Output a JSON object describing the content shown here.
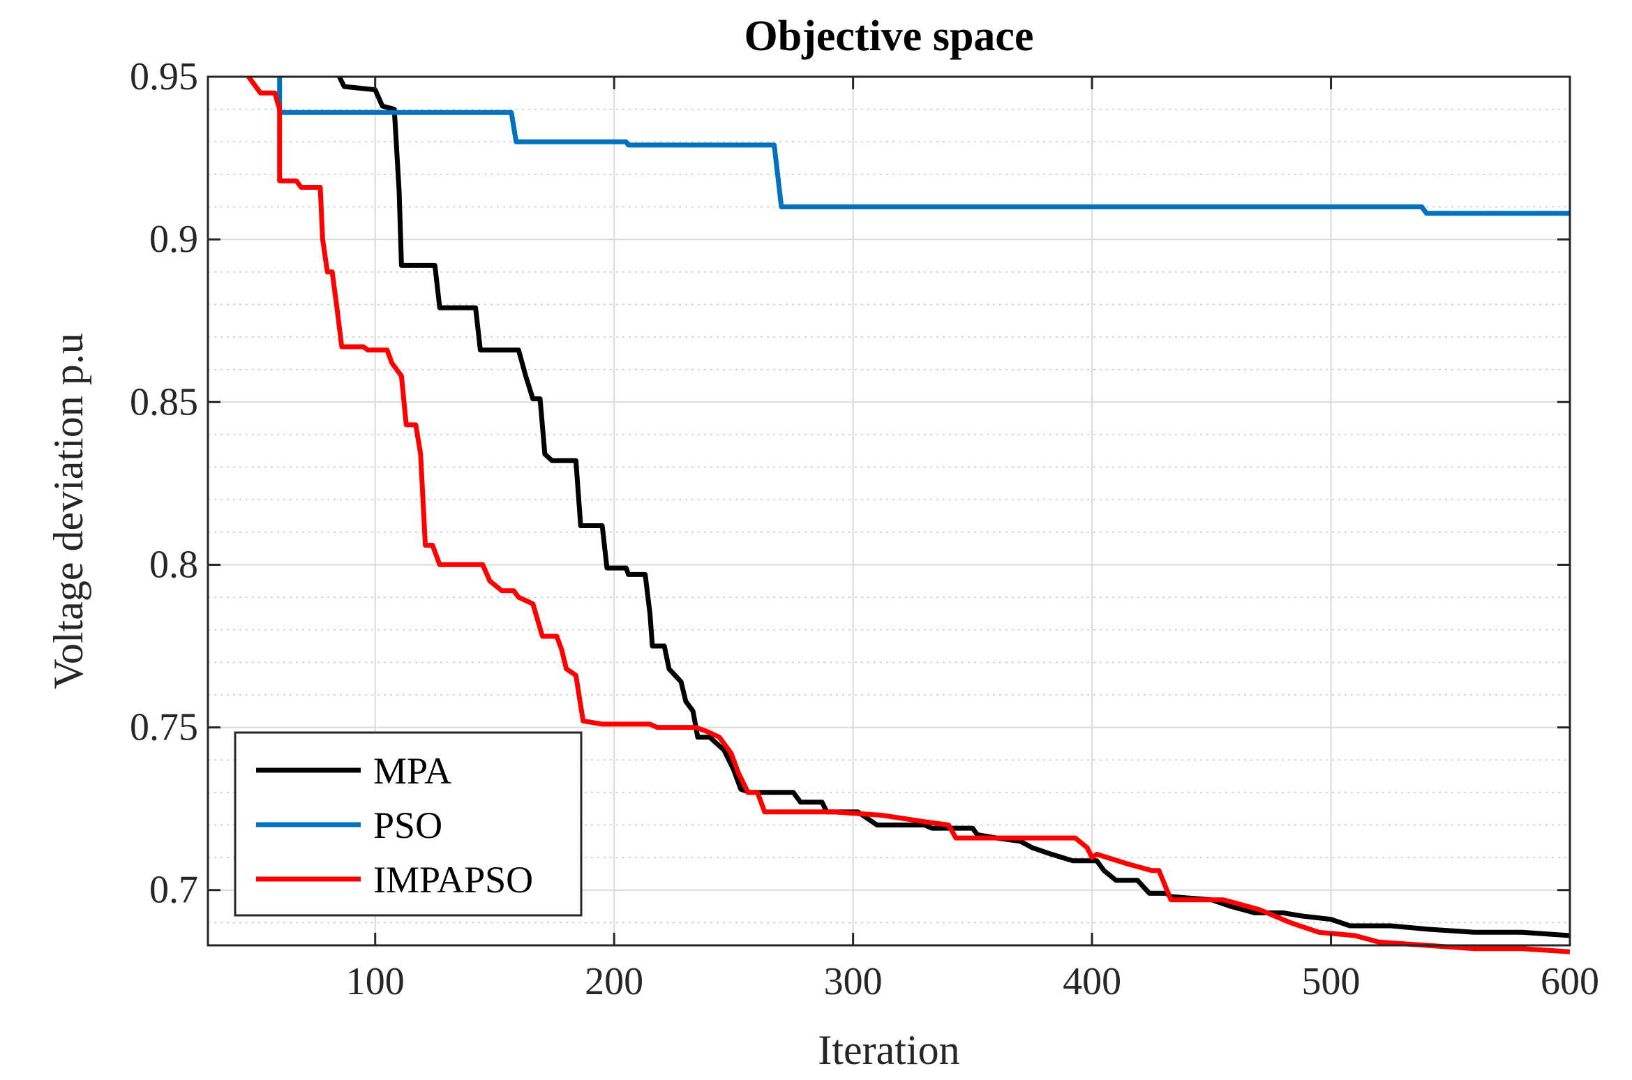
{
  "chart_data": {
    "type": "line",
    "title": "Objective space",
    "xlabel": "Iteration",
    "ylabel": "Voltage deviation p.u",
    "xlim": [
      30,
      600
    ],
    "ylim": [
      0.683,
      0.95
    ],
    "xticks": [
      100,
      200,
      300,
      400,
      500,
      600
    ],
    "xtick_labels": [
      "100",
      "200",
      "300",
      "400",
      "500",
      "600"
    ],
    "yticks": [
      0.7,
      0.75,
      0.8,
      0.85,
      0.9,
      0.95
    ],
    "ytick_labels": [
      "0.7",
      "0.75",
      "0.8",
      "0.85",
      "0.9",
      "0.95"
    ],
    "grid": true,
    "legend_position": "bottom-left",
    "series": [
      {
        "name": "MPA",
        "color": "#000000",
        "points": [
          [
            85,
            0.95
          ],
          [
            87,
            0.947
          ],
          [
            100,
            0.946
          ],
          [
            103,
            0.941
          ],
          [
            108,
            0.94
          ],
          [
            110,
            0.915
          ],
          [
            111,
            0.892
          ],
          [
            125,
            0.892
          ],
          [
            127,
            0.879
          ],
          [
            142,
            0.879
          ],
          [
            144,
            0.866
          ],
          [
            160,
            0.866
          ],
          [
            163,
            0.858
          ],
          [
            166,
            0.851
          ],
          [
            169,
            0.851
          ],
          [
            171,
            0.834
          ],
          [
            174,
            0.832
          ],
          [
            184,
            0.832
          ],
          [
            186,
            0.812
          ],
          [
            195,
            0.812
          ],
          [
            197,
            0.799
          ],
          [
            205,
            0.799
          ],
          [
            206,
            0.797
          ],
          [
            213,
            0.797
          ],
          [
            215,
            0.785
          ],
          [
            216,
            0.775
          ],
          [
            221,
            0.775
          ],
          [
            223,
            0.768
          ],
          [
            228,
            0.764
          ],
          [
            230,
            0.758
          ],
          [
            233,
            0.755
          ],
          [
            235,
            0.747
          ],
          [
            240,
            0.747
          ],
          [
            243,
            0.745
          ],
          [
            246,
            0.743
          ],
          [
            250,
            0.737
          ],
          [
            253,
            0.731
          ],
          [
            257,
            0.73
          ],
          [
            275,
            0.73
          ],
          [
            278,
            0.727
          ],
          [
            287,
            0.727
          ],
          [
            289,
            0.724
          ],
          [
            295,
            0.724
          ],
          [
            302,
            0.724
          ],
          [
            306,
            0.722
          ],
          [
            310,
            0.72
          ],
          [
            330,
            0.72
          ],
          [
            333,
            0.719
          ],
          [
            350,
            0.719
          ],
          [
            352,
            0.717
          ],
          [
            360,
            0.716
          ],
          [
            370,
            0.715
          ],
          [
            375,
            0.713
          ],
          [
            383,
            0.711
          ],
          [
            392,
            0.709
          ],
          [
            402,
            0.709
          ],
          [
            405,
            0.706
          ],
          [
            410,
            0.703
          ],
          [
            419,
            0.703
          ],
          [
            424,
            0.699
          ],
          [
            431,
            0.699
          ],
          [
            433,
            0.698
          ],
          [
            450,
            0.697
          ],
          [
            458,
            0.695
          ],
          [
            468,
            0.693
          ],
          [
            480,
            0.693
          ],
          [
            488,
            0.692
          ],
          [
            500,
            0.691
          ],
          [
            508,
            0.689
          ],
          [
            525,
            0.689
          ],
          [
            540,
            0.688
          ],
          [
            560,
            0.687
          ],
          [
            580,
            0.687
          ],
          [
            600,
            0.686
          ]
        ]
      },
      {
        "name": "PSO",
        "color": "#0072BD",
        "points": [
          [
            60,
            0.95
          ],
          [
            60,
            0.939
          ],
          [
            157,
            0.939
          ],
          [
            159,
            0.93
          ],
          [
            205,
            0.93
          ],
          [
            206,
            0.929
          ],
          [
            267,
            0.929
          ],
          [
            270,
            0.91
          ],
          [
            538,
            0.91
          ],
          [
            540,
            0.908
          ],
          [
            600,
            0.908
          ]
        ]
      },
      {
        "name": "IMPAPSO",
        "color": "#FF0000",
        "points": [
          [
            47,
            0.95
          ],
          [
            50,
            0.947
          ],
          [
            52,
            0.945
          ],
          [
            58,
            0.945
          ],
          [
            60,
            0.94
          ],
          [
            60,
            0.918
          ],
          [
            67,
            0.918
          ],
          [
            69,
            0.916
          ],
          [
            77,
            0.916
          ],
          [
            78,
            0.9
          ],
          [
            80,
            0.89
          ],
          [
            82,
            0.89
          ],
          [
            84,
            0.879
          ],
          [
            86,
            0.867
          ],
          [
            95,
            0.867
          ],
          [
            97,
            0.866
          ],
          [
            105,
            0.866
          ],
          [
            107,
            0.862
          ],
          [
            111,
            0.858
          ],
          [
            113,
            0.843
          ],
          [
            117,
            0.843
          ],
          [
            119,
            0.834
          ],
          [
            121,
            0.806
          ],
          [
            124,
            0.806
          ],
          [
            127,
            0.8
          ],
          [
            145,
            0.8
          ],
          [
            148,
            0.795
          ],
          [
            153,
            0.792
          ],
          [
            158,
            0.792
          ],
          [
            160,
            0.79
          ],
          [
            166,
            0.788
          ],
          [
            170,
            0.778
          ],
          [
            176,
            0.778
          ],
          [
            178,
            0.774
          ],
          [
            180,
            0.768
          ],
          [
            184,
            0.766
          ],
          [
            187,
            0.752
          ],
          [
            195,
            0.751
          ],
          [
            215,
            0.751
          ],
          [
            218,
            0.75
          ],
          [
            234,
            0.75
          ],
          [
            238,
            0.749
          ],
          [
            244,
            0.747
          ],
          [
            249,
            0.742
          ],
          [
            252,
            0.736
          ],
          [
            256,
            0.73
          ],
          [
            260,
            0.73
          ],
          [
            263,
            0.724
          ],
          [
            268,
            0.724
          ],
          [
            292,
            0.724
          ],
          [
            312,
            0.723
          ],
          [
            330,
            0.721
          ],
          [
            340,
            0.72
          ],
          [
            343,
            0.716
          ],
          [
            360,
            0.716
          ],
          [
            372,
            0.716
          ],
          [
            393,
            0.716
          ],
          [
            398,
            0.713
          ],
          [
            400,
            0.71
          ],
          [
            402,
            0.711
          ],
          [
            415,
            0.708
          ],
          [
            425,
            0.706
          ],
          [
            428,
            0.706
          ],
          [
            433,
            0.697
          ],
          [
            455,
            0.697
          ],
          [
            470,
            0.694
          ],
          [
            483,
            0.69
          ],
          [
            495,
            0.687
          ],
          [
            510,
            0.686
          ],
          [
            520,
            0.684
          ],
          [
            540,
            0.683
          ],
          [
            560,
            0.682
          ],
          [
            580,
            0.682
          ],
          [
            600,
            0.681
          ]
        ]
      }
    ]
  }
}
